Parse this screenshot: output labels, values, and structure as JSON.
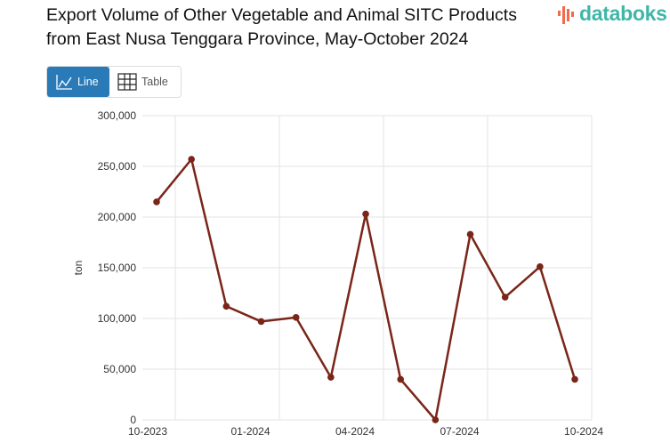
{
  "header": {
    "title_line1": "Export Volume of Other Vegetable and Animal SITC Products",
    "title_line2": "from East Nusa Tenggara Province, May-October 2024",
    "logo": "databoks"
  },
  "toggle": {
    "line_label": "Line",
    "table_label": "Table",
    "line_icon": "line-chart-icon",
    "table_icon": "table-grid-icon",
    "active": "Line",
    "active_color": "#2a7ab8"
  },
  "chart_data": {
    "type": "line",
    "title": "Export Volume of Other Vegetable and Animal SITC Products from East Nusa Tenggara Province, May-October 2024",
    "xlabel": "",
    "ylabel": "ton",
    "x": [
      "10-2023",
      "11-2023",
      "12-2023",
      "01-2024",
      "02-2024",
      "03-2024",
      "04-2024",
      "05-2024",
      "06-2024",
      "07-2024",
      "08-2024",
      "09-2024",
      "10-2024"
    ],
    "xtick_labels": [
      "10-2023",
      "01-2024",
      "04-2024",
      "07-2024",
      "10-2024"
    ],
    "ytick_labels": [
      "0",
      "50,000",
      "100,000",
      "150,000",
      "200,000",
      "250,000",
      "300,000"
    ],
    "series": [
      {
        "values": [
          215000,
          257000,
          112000,
          97000,
          101000,
          42000,
          203000,
          40000,
          0,
          183000,
          121000,
          151000,
          40000
        ],
        "color": "#7a2518"
      }
    ],
    "ylim": [
      0,
      300000
    ],
    "grid": true,
    "legend": "none"
  }
}
